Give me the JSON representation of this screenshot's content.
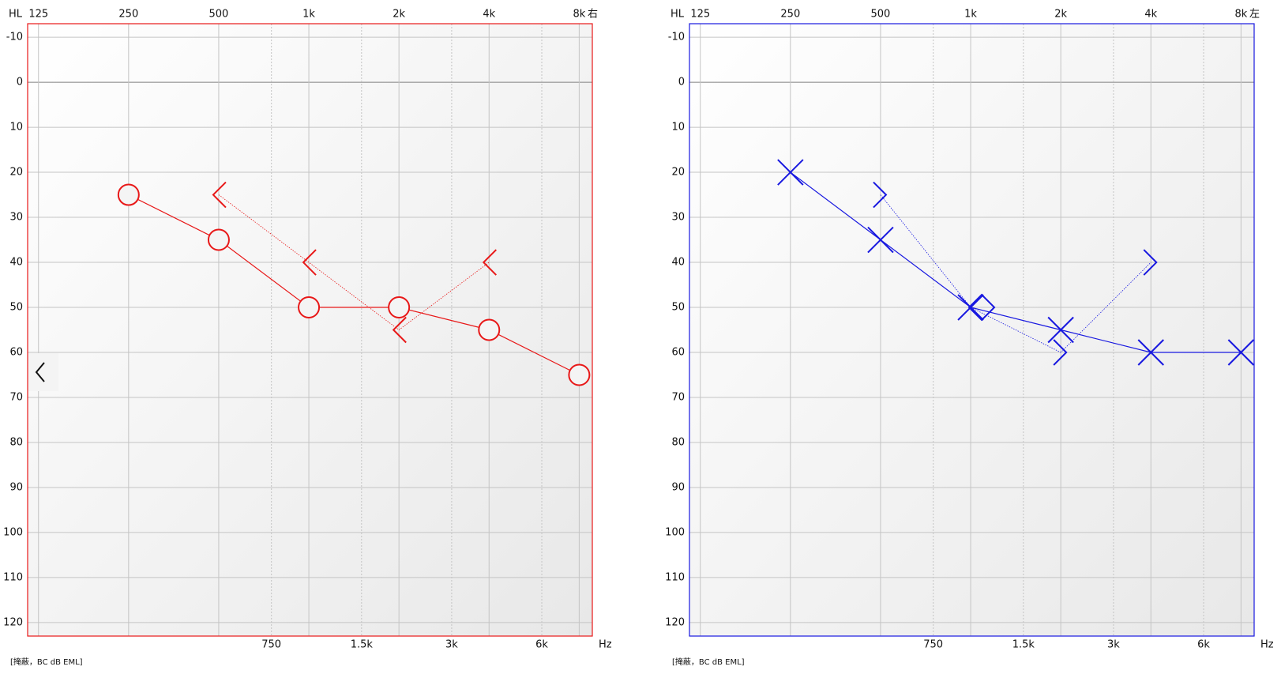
{
  "chart_data": [
    {
      "type": "line",
      "hl_label": "HL",
      "ear_label": "右",
      "x_unit": "Hz",
      "note": "[掩蔽，BC dB EML]",
      "color": "#e81818",
      "xscale": "log",
      "xlim": [
        115,
        8850
      ],
      "ylim": [
        -13,
        123
      ],
      "xticks": [
        125,
        250,
        500,
        {
          "value": 1000,
          "label": "1k"
        },
        {
          "value": 2000,
          "label": "2k"
        },
        {
          "value": 4000,
          "label": "4k"
        },
        {
          "value": 8000,
          "label": "8k"
        }
      ],
      "xticks_minor": [
        750,
        {
          "value": 1500,
          "label": "1.5k"
        },
        {
          "value": 3000,
          "label": "3k"
        },
        {
          "value": 6000,
          "label": "6k"
        }
      ],
      "yticks": [
        -10,
        0,
        10,
        20,
        30,
        40,
        50,
        60,
        70,
        80,
        90,
        100,
        110,
        120
      ],
      "grid": true,
      "series": [
        {
          "color": "#e81818",
          "style": "solid",
          "marker": "circle",
          "x": [
            250,
            500,
            1000,
            2000,
            4000,
            8000
          ],
          "values": [
            25,
            35,
            50,
            50,
            55,
            65
          ]
        },
        {
          "color": "#e81818",
          "style": "dotted",
          "marker": "<",
          "x": [
            500,
            1000,
            2000,
            4000
          ],
          "values": [
            25,
            40,
            55,
            40
          ]
        }
      ]
    },
    {
      "type": "line",
      "hl_label": "HL",
      "ear_label": "左",
      "x_unit": "Hz",
      "note": "[掩蔽，BC dB EML]",
      "color": "#1818e0",
      "xscale": "log",
      "xlim": [
        115,
        8850
      ],
      "ylim": [
        -13,
        123
      ],
      "xticks": [
        125,
        250,
        500,
        {
          "value": 1000,
          "label": "1k"
        },
        {
          "value": 2000,
          "label": "2k"
        },
        {
          "value": 4000,
          "label": "4k"
        },
        {
          "value": 8000,
          "label": "8k"
        }
      ],
      "xticks_minor": [
        750,
        {
          "value": 1500,
          "label": "1.5k"
        },
        {
          "value": 3000,
          "label": "3k"
        },
        {
          "value": 6000,
          "label": "6k"
        }
      ],
      "yticks": [
        -10,
        0,
        10,
        20,
        30,
        40,
        50,
        60,
        70,
        80,
        90,
        100,
        110,
        120
      ],
      "grid": true,
      "series": [
        {
          "color": "#1818e0",
          "style": "solid",
          "marker": "x",
          "x": [
            250,
            500,
            1000,
            2000,
            4000,
            8000
          ],
          "values": [
            20,
            35,
            50,
            55,
            60,
            60
          ]
        },
        {
          "color": "#1818e0",
          "style": "dotted",
          "markers": [
            ">",
            "diamond",
            ">",
            ">"
          ],
          "x": [
            500,
            1000,
            2000,
            4000
          ],
          "values": [
            25,
            50,
            60,
            40
          ]
        }
      ]
    }
  ]
}
